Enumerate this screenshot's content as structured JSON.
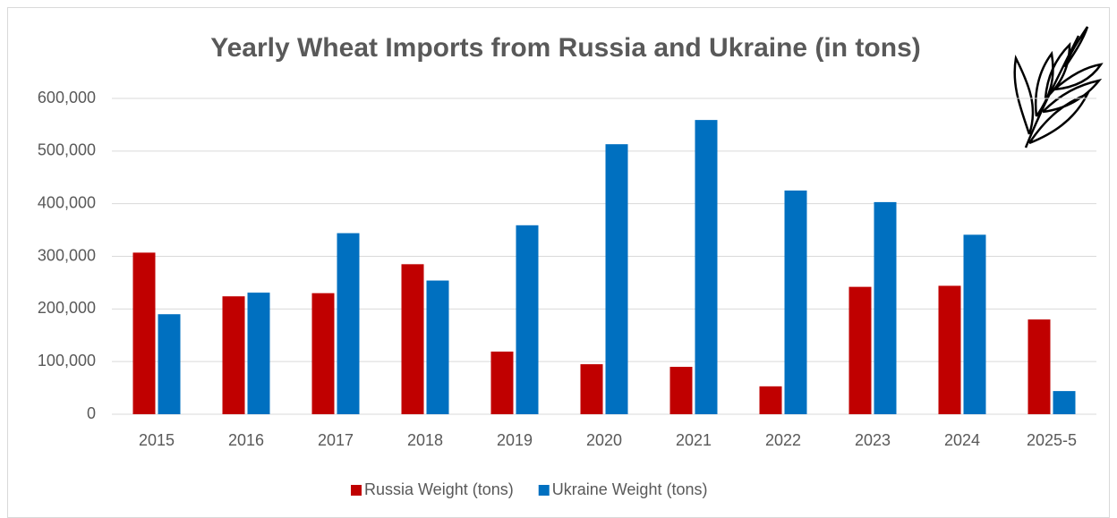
{
  "chart_data": {
    "type": "bar",
    "title": "Yearly Wheat Imports from Russia and Ukraine (in tons)",
    "categories": [
      "2015",
      "2016",
      "2017",
      "2018",
      "2019",
      "2020",
      "2021",
      "2022",
      "2023",
      "2024",
      "2025-5"
    ],
    "series": [
      {
        "name": "Russia Weight (tons)",
        "color": "#c00000",
        "values": [
          307000,
          224000,
          230000,
          285000,
          119000,
          95000,
          90000,
          53000,
          242000,
          244000,
          180000
        ]
      },
      {
        "name": "Ukraine Weight (tons)",
        "color": "#0070c0",
        "values": [
          190000,
          231000,
          344000,
          254000,
          359000,
          513000,
          559000,
          425000,
          403000,
          341000,
          44000
        ]
      }
    ],
    "ylim": [
      0,
      600000
    ],
    "yticks": [
      0,
      {
        "value": 100000,
        "label": "100,000"
      },
      {
        "value": 200000,
        "label": "200,000"
      },
      {
        "value": 300000,
        "label": "300,000"
      },
      {
        "value": 400000,
        "label": "400,000"
      },
      {
        "value": 500000,
        "label": "500,000"
      },
      {
        "value": 600000,
        "label": "600,000"
      }
    ],
    "grid": true,
    "legend": "bottom"
  }
}
